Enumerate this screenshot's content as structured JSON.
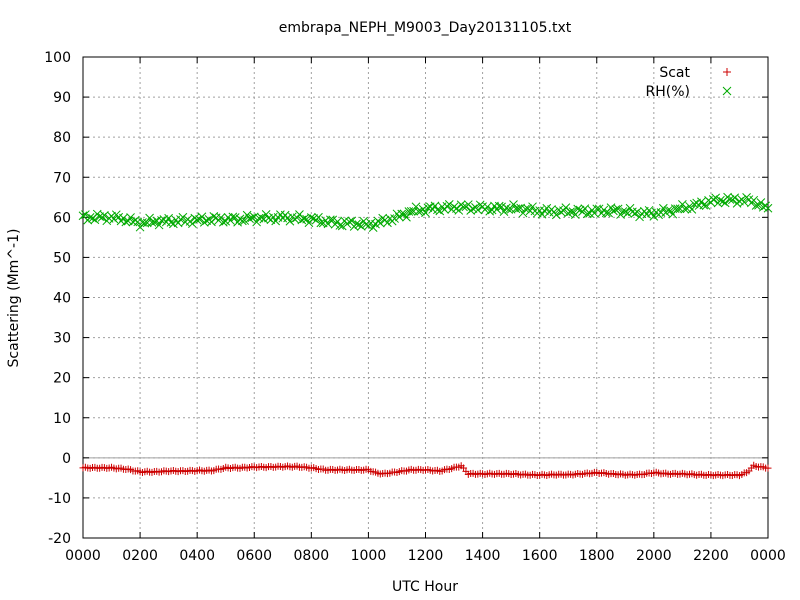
{
  "chart_data": {
    "type": "scatter",
    "title": "embrapa_NEPH_M9003_Day20131105.txt",
    "xlabel": "UTC Hour",
    "ylabel": "Scattering (Mm^-1)",
    "xlim": [
      0,
      24
    ],
    "ylim": [
      -20,
      100
    ],
    "grid": true,
    "legend_position": "top-right",
    "y_ticks": [
      "-20",
      "-10",
      "0",
      "10",
      "20",
      "30",
      "40",
      "50",
      "60",
      "70",
      "80",
      "90",
      "100"
    ],
    "x_ticks": [
      "0000",
      "0200",
      "0400",
      "0600",
      "0800",
      "1000",
      "1200",
      "1400",
      "1600",
      "1800",
      "2000",
      "2200",
      "0000"
    ],
    "series": [
      {
        "name": "Scat",
        "color": "#cc0000",
        "marker": "plus",
        "x": [
          0,
          0.5,
          1,
          1.5,
          2,
          2.5,
          3,
          3.5,
          4,
          4.5,
          5,
          5.5,
          6,
          6.5,
          7,
          7.5,
          8,
          8.5,
          9,
          9.5,
          10,
          10.25,
          10.5,
          11,
          11.5,
          12,
          12.5,
          13,
          13.25,
          13.5,
          14,
          14.5,
          15,
          15.5,
          16,
          16.5,
          17,
          17.5,
          18,
          18.5,
          19,
          19.5,
          20,
          20.5,
          21,
          21.5,
          22,
          22.5,
          23,
          23.25,
          23.5,
          23.75,
          24
        ],
        "values": [
          -2.5,
          -2.5,
          -2.5,
          -2.8,
          -3.5,
          -3.5,
          -3.3,
          -3.3,
          -3.2,
          -3.2,
          -2.5,
          -2.5,
          -2.3,
          -2.3,
          -2.2,
          -2.2,
          -2.5,
          -3,
          -3,
          -3,
          -3,
          -3.7,
          -4,
          -3.5,
          -3,
          -3,
          -3.3,
          -2.5,
          -2,
          -4,
          -4,
          -4,
          -4,
          -4.2,
          -4.3,
          -4.2,
          -4.2,
          -4,
          -3.7,
          -4,
          -4.2,
          -4.2,
          -3.7,
          -4,
          -4,
          -4.2,
          -4.3,
          -4.3,
          -4.3,
          -3.7,
          -2,
          -2.3,
          -2.5
        ]
      },
      {
        "name": "RH(%)",
        "color": "#00aa00",
        "marker": "cross",
        "x": [
          0,
          0.5,
          1,
          1.5,
          2,
          2.5,
          3,
          3.5,
          4,
          4.5,
          5,
          5.5,
          6,
          6.5,
          7,
          7.5,
          8,
          8.5,
          9,
          9.5,
          10,
          10.5,
          11,
          11.5,
          12,
          12.5,
          13,
          13.5,
          14,
          14.5,
          15,
          15.5,
          16,
          16.5,
          17,
          17.5,
          18,
          18.5,
          19,
          19.5,
          20,
          20.5,
          21,
          21.5,
          22,
          22.5,
          23,
          23.5,
          24
        ],
        "values": [
          60,
          60,
          60,
          59.5,
          58.5,
          59,
          59,
          59.2,
          59.3,
          59.5,
          59.5,
          59.5,
          59.8,
          59.8,
          60,
          59.8,
          59.5,
          59,
          58.5,
          58.5,
          58,
          59,
          60,
          61.5,
          62,
          62.3,
          62.5,
          62.5,
          62.3,
          62.2,
          62.3,
          62,
          61.5,
          61.5,
          61.5,
          61.5,
          61.5,
          61.7,
          61.5,
          61,
          61,
          61.5,
          62.3,
          63,
          64,
          64.3,
          64.3,
          64,
          62
        ]
      }
    ]
  }
}
